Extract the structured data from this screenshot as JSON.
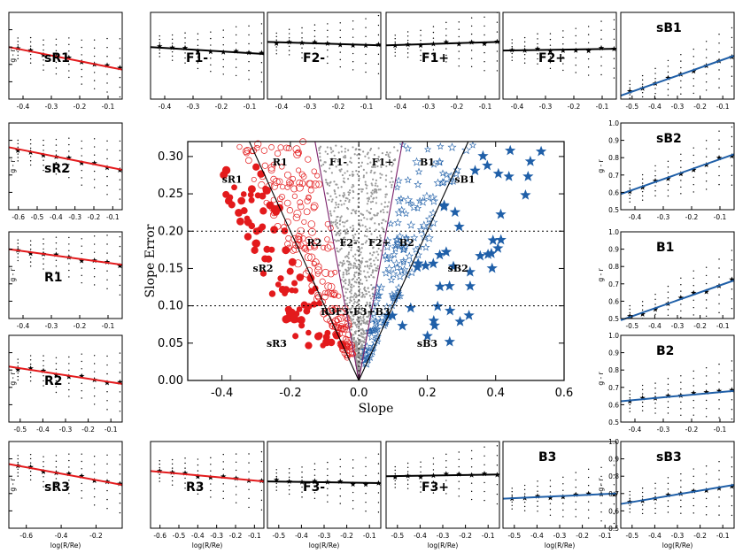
{
  "main": {
    "xlabel": "Slope",
    "ylabel": "Slope Error",
    "xlim": [
      -0.5,
      0.6
    ],
    "ylim": [
      0.0,
      0.32
    ],
    "xticks": [
      "-0.4",
      "-0.2",
      "0.0",
      "0.2",
      "0.4",
      "0.6"
    ],
    "yticks": [
      "0.00",
      "0.05",
      "0.10",
      "0.15",
      "0.20",
      "0.25",
      "0.30"
    ],
    "hlines": [
      0.1,
      0.2
    ],
    "regions": [
      {
        "label": "sR1",
        "x": -0.37,
        "y": 0.265
      },
      {
        "label": "R1",
        "x": -0.23,
        "y": 0.288
      },
      {
        "label": "F1-",
        "x": -0.06,
        "y": 0.288
      },
      {
        "label": "F1+",
        "x": 0.07,
        "y": 0.288
      },
      {
        "label": "B1",
        "x": 0.2,
        "y": 0.288
      },
      {
        "label": "sB1",
        "x": 0.31,
        "y": 0.265
      },
      {
        "label": "R2",
        "x": -0.13,
        "y": 0.18
      },
      {
        "label": "F2-",
        "x": -0.03,
        "y": 0.18
      },
      {
        "label": "F2+",
        "x": 0.06,
        "y": 0.18
      },
      {
        "label": "B2",
        "x": 0.14,
        "y": 0.18
      },
      {
        "label": "sR2",
        "x": -0.28,
        "y": 0.146
      },
      {
        "label": "sB2",
        "x": 0.29,
        "y": 0.146
      },
      {
        "label": "R3F3-F3+B3",
        "x": -0.01,
        "y": 0.088
      },
      {
        "label": "sR3",
        "x": -0.24,
        "y": 0.045
      },
      {
        "label": "sB3",
        "x": 0.2,
        "y": 0.045
      }
    ]
  },
  "labels": {
    "ticks_a": [
      "-0.4",
      "-0.3",
      "-0.2",
      "-0.1"
    ],
    "ticks_b": [
      "-0.5",
      "-0.4",
      "-0.3",
      "-0.2",
      "-0.1"
    ],
    "ticks_c": [
      "-0.6",
      "-0.5",
      "-0.4",
      "-0.3",
      "-0.2",
      "-0.1"
    ],
    "ticks_d": [
      "-0.6",
      "-0.4",
      "-0.2"
    ],
    "yticks_gr": [
      "0.5",
      "0.6",
      "0.7",
      "0.8",
      "0.9",
      "1.0"
    ],
    "ylabel_small": "g - r",
    "xlabel_small": "log(R/Re)"
  },
  "colors": {
    "red": "#e31a1c",
    "blue": "#1f5fa8",
    "black": "#000000",
    "gray": "#9a9a9a",
    "purple": "#7a1f6a"
  },
  "chart_data": [
    {
      "type": "scatter",
      "panel": "main",
      "title": "",
      "xlabel": "Slope",
      "ylabel": "Slope Error",
      "xlim": [
        -0.5,
        0.6
      ],
      "ylim": [
        0.0,
        0.32
      ],
      "series": []
    },
    {
      "type": "line",
      "panel": "sR1",
      "color": "red",
      "title": "sR1",
      "ylim": [
        0.5,
        1.0
      ],
      "ticks": "a",
      "y_axis": true,
      "x": [
        -0.45,
        -0.05
      ],
      "y": [
        0.8,
        0.67
      ]
    },
    {
      "type": "line",
      "panel": "F1-",
      "color": "black",
      "title": "F1-",
      "ylim": [
        0.5,
        1.0
      ],
      "ticks": "a",
      "x": [
        -0.45,
        -0.05
      ],
      "y": [
        0.8,
        0.76
      ]
    },
    {
      "type": "line",
      "panel": "F2-",
      "color": "black",
      "title": "F2-",
      "ylim": [
        0.5,
        1.0
      ],
      "ticks": "a",
      "x": [
        -0.45,
        -0.05
      ],
      "y": [
        0.83,
        0.81
      ]
    },
    {
      "type": "line",
      "panel": "F1+",
      "color": "black",
      "title": "F1+",
      "ylim": [
        0.5,
        1.0
      ],
      "ticks": "a",
      "x": [
        -0.45,
        -0.05
      ],
      "y": [
        0.81,
        0.83
      ]
    },
    {
      "type": "line",
      "panel": "F2+",
      "color": "black",
      "title": "F2+",
      "ylim": [
        0.5,
        1.0
      ],
      "ticks": "a",
      "x": [
        -0.45,
        -0.05
      ],
      "y": [
        0.78,
        0.79
      ]
    },
    {
      "type": "line",
      "panel": "sB1",
      "color": "blue",
      "title": "sB1",
      "ylim": [
        0.5,
        1.0
      ],
      "ticks": "b",
      "x": [
        -0.55,
        -0.05
      ],
      "y": [
        0.52,
        0.75
      ]
    },
    {
      "type": "line",
      "panel": "sR2",
      "color": "red",
      "title": "sR2",
      "ylim": [
        0.5,
        1.0
      ],
      "ticks": "c",
      "y_axis": true,
      "x": [
        -0.65,
        -0.05
      ],
      "y": [
        0.86,
        0.73
      ]
    },
    {
      "type": "line",
      "panel": "sB2",
      "color": "blue",
      "title": "sB2",
      "ylim": [
        0.5,
        1.0
      ],
      "ticks": "a",
      "y_axis": true,
      "x": [
        -0.45,
        -0.05
      ],
      "y": [
        0.59,
        0.82
      ]
    },
    {
      "type": "line",
      "panel": "R1",
      "color": "red",
      "title": "R1",
      "ylim": [
        0.5,
        1.0
      ],
      "ticks": "a",
      "y_axis": true,
      "x": [
        -0.45,
        -0.05
      ],
      "y": [
        0.9,
        0.81
      ]
    },
    {
      "type": "line",
      "panel": "B1",
      "color": "blue",
      "title": "B1",
      "ylim": [
        0.5,
        1.0
      ],
      "ticks": "b",
      "y_axis": true,
      "x": [
        -0.55,
        -0.05
      ],
      "y": [
        0.49,
        0.72
      ]
    },
    {
      "type": "line",
      "panel": "R2",
      "color": "red",
      "title": "R2",
      "ylim": [
        0.5,
        1.0
      ],
      "ticks": "b",
      "y_axis": true,
      "x": [
        -0.55,
        -0.05
      ],
      "y": [
        0.82,
        0.72
      ]
    },
    {
      "type": "line",
      "panel": "B2",
      "color": "blue",
      "title": "B2",
      "ylim": [
        0.5,
        1.0
      ],
      "ticks": "a",
      "y_axis": true,
      "x": [
        -0.45,
        -0.05
      ],
      "y": [
        0.62,
        0.68
      ]
    },
    {
      "type": "line",
      "panel": "sR3",
      "color": "red",
      "title": "sR3",
      "ylim": [
        0.5,
        1.0
      ],
      "ticks": "d",
      "y_axis": true,
      "x": [
        -0.7,
        -0.05
      ],
      "y": [
        0.87,
        0.75
      ]
    },
    {
      "type": "line",
      "panel": "R3",
      "color": "red",
      "title": "R3",
      "ylim": [
        0.5,
        1.0
      ],
      "ticks": "c",
      "x": [
        -0.65,
        -0.05
      ],
      "y": [
        0.83,
        0.77
      ]
    },
    {
      "type": "line",
      "panel": "F3-",
      "color": "black",
      "title": "F3-",
      "ylim": [
        0.5,
        1.0
      ],
      "ticks": "b",
      "x": [
        -0.55,
        -0.05
      ],
      "y": [
        0.77,
        0.76
      ]
    },
    {
      "type": "line",
      "panel": "F3+",
      "color": "black",
      "title": "F3+",
      "ylim": [
        0.5,
        1.0
      ],
      "ticks": "b",
      "x": [
        -0.55,
        -0.05
      ],
      "y": [
        0.8,
        0.81
      ]
    },
    {
      "type": "line",
      "panel": "B3",
      "color": "blue",
      "title": "B3",
      "ylim": [
        0.5,
        1.0
      ],
      "ticks": "b",
      "x": [
        -0.55,
        -0.05
      ],
      "y": [
        0.67,
        0.7
      ]
    },
    {
      "type": "line",
      "panel": "sB3",
      "color": "blue",
      "title": "sB3",
      "ylim": [
        0.5,
        1.0
      ],
      "ticks": "b",
      "y_axis": true,
      "x": [
        -0.55,
        -0.05
      ],
      "y": [
        0.64,
        0.75
      ]
    }
  ]
}
